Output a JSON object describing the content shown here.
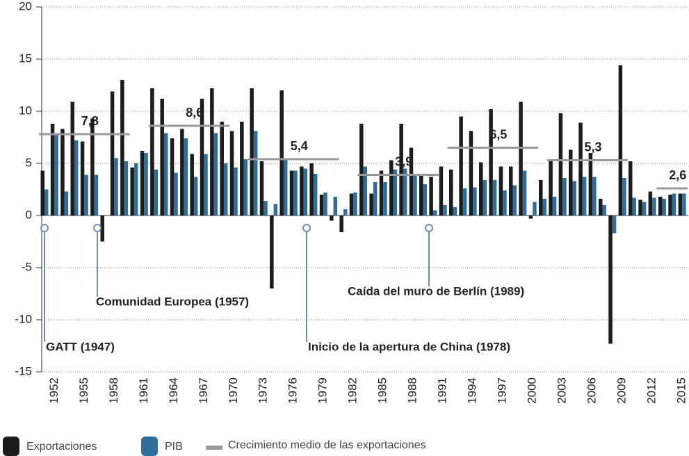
{
  "chart_data": {
    "type": "bar",
    "categories": [
      null,
      "1952",
      null,
      null,
      "1955",
      null,
      null,
      "1958",
      null,
      null,
      "1961",
      null,
      null,
      "1964",
      null,
      null,
      "1967",
      null,
      null,
      "1970",
      null,
      null,
      "1973",
      null,
      null,
      "1976",
      null,
      null,
      "1979",
      null,
      null,
      "1982",
      null,
      null,
      "1985",
      null,
      null,
      "1988",
      null,
      null,
      "1991",
      null,
      null,
      "1994",
      null,
      null,
      "1997",
      null,
      null,
      "2000",
      null,
      null,
      "2003",
      null,
      null,
      "2006",
      null,
      null,
      "2009",
      null,
      null,
      "2012",
      null,
      null,
      "2015"
    ],
    "series": [
      {
        "name": "Exportaciones",
        "color": "#1c1c1c",
        "values": [
          4.3,
          8.8,
          8.3,
          10.9,
          7.1,
          9.3,
          -2.5,
          11.9,
          13.0,
          4.6,
          6.2,
          12.2,
          11.2,
          7.4,
          8.3,
          5.9,
          11.2,
          12.2,
          9.0,
          8.1,
          9.0,
          12.2,
          5.2,
          -7.0,
          12.0,
          4.3,
          4.7,
          5.0,
          2.0,
          -0.5,
          -1.6,
          2.1,
          8.8,
          2.1,
          4.3,
          5.3,
          8.8,
          6.5,
          4.0,
          3.7,
          4.7,
          4.4,
          9.5,
          8.1,
          5.1,
          10.2,
          4.7,
          4.7,
          10.9,
          -0.3,
          3.4,
          5.4,
          9.8,
          6.3,
          8.9,
          6.0,
          1.6,
          -12.3,
          14.4,
          5.2,
          1.5,
          2.3,
          1.8,
          2.0,
          2.1
        ]
      },
      {
        "name": "PIB",
        "color": "#2f6e9b",
        "values": [
          2.5,
          7.9,
          2.3,
          7.2,
          3.9,
          3.9,
          0,
          5.5,
          5.2,
          5.0,
          6.0,
          4.4,
          7.9,
          4.1,
          7.4,
          3.7,
          5.9,
          7.9,
          5.0,
          4.6,
          5.4,
          8.1,
          1.4,
          1.1,
          5.4,
          4.3,
          4.5,
          4.0,
          2.2,
          1.8,
          0.6,
          2.2,
          4.7,
          3.2,
          3.2,
          4.4,
          4.5,
          4.0,
          3.0,
          0.5,
          1.0,
          0.8,
          2.6,
          2.7,
          3.4,
          3.4,
          2.4,
          2.9,
          4.3,
          1.3,
          1.6,
          1.8,
          3.6,
          3.3,
          3.7,
          3.7,
          1.0,
          -1.7,
          3.6,
          1.7,
          1.3,
          1.7,
          1.6,
          2.1,
          2.1
        ]
      }
    ],
    "average_series": {
      "name": "Crecimiento medio de las exportaciones",
      "color": "#999999",
      "periods": [
        [
          0,
          8
        ],
        [
          11,
          18
        ],
        [
          21,
          29
        ],
        [
          32,
          39
        ],
        [
          41,
          49
        ],
        [
          51,
          58
        ],
        [
          62,
          64
        ]
      ],
      "values": [
        7.8,
        8.6,
        5.4,
        3.9,
        6.5,
        5.3,
        2.6
      ],
      "value_labels": [
        "7,8",
        "8,6",
        "5,4",
        "3,9",
        "6,5",
        "5,3",
        "2,6"
      ]
    },
    "annotations": [
      "GATT (1947)",
      "Comunidad Europea (1957)",
      "Inicio de la apertura de China (1978)",
      "Caída del muro de Berlín (1989)"
    ],
    "ylim": [
      -15,
      20
    ],
    "yticks": [
      20,
      15,
      10,
      5,
      0,
      -5,
      -10,
      -15
    ],
    "grid": true
  }
}
